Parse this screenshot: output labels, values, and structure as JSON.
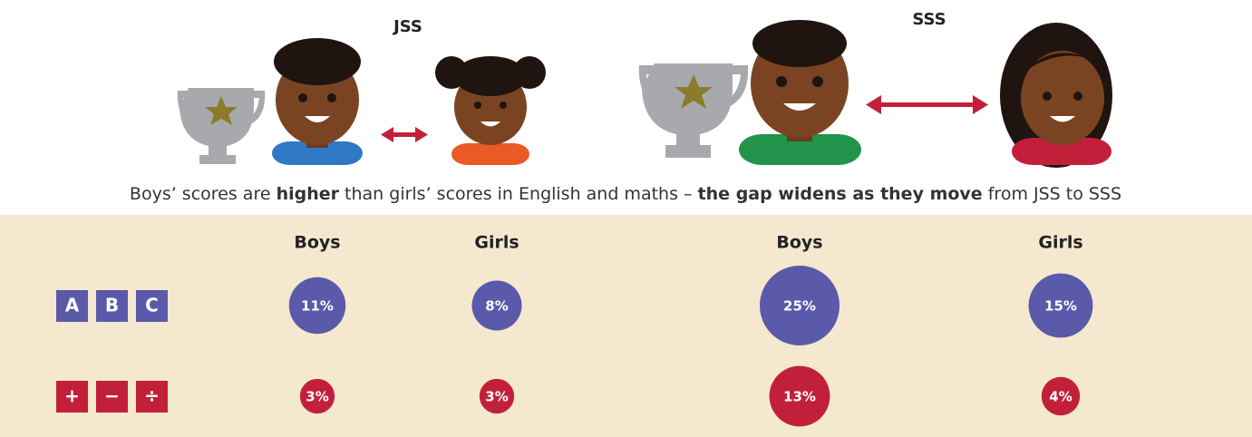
{
  "chart_data": {
    "type": "bubble",
    "groups": [
      {
        "label": "JSS",
        "categories": [
          "Boys",
          "Girls"
        ]
      },
      {
        "label": "SSS",
        "categories": [
          "Boys",
          "Girls"
        ]
      }
    ],
    "series": [
      {
        "icon": [
          "A",
          "B",
          "C"
        ],
        "color": "#5b59a9",
        "values": [
          11,
          8,
          25,
          15
        ],
        "value_labels": [
          "11%",
          "8%",
          "25%",
          "15%"
        ]
      },
      {
        "icon": [
          "+",
          "−",
          "÷"
        ],
        "color": "#c2203a",
        "values": [
          3,
          3,
          13,
          4
        ],
        "value_labels": [
          "3%",
          "3%",
          "13%",
          "4%"
        ]
      }
    ],
    "caption": [
      {
        "text": "Boys’ scores are ",
        "bold": false
      },
      {
        "text": "higher",
        "bold": true
      },
      {
        "text": " than girls’ scores in English and maths – ",
        "bold": false
      },
      {
        "text": "the gap widens as they move",
        "bold": true
      },
      {
        "text": " from JSS to SSS",
        "bold": false
      }
    ]
  }
}
